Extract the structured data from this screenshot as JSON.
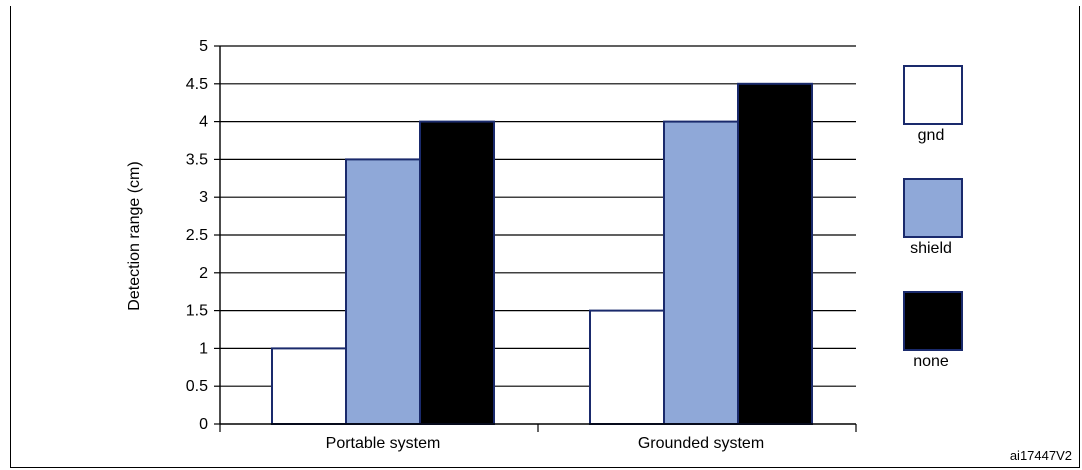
{
  "chart_data": {
    "type": "bar",
    "title": "",
    "xlabel": "",
    "ylabel": "Detection range (cm)",
    "ylim": [
      0,
      5
    ],
    "yticks": [
      "0",
      "0.5",
      "1",
      "1.5",
      "2",
      "2.5",
      "3",
      "3.5",
      "4",
      "4.5",
      "5"
    ],
    "categories": [
      "Portable system",
      "Grounded system"
    ],
    "series": [
      {
        "name": "gnd",
        "values": [
          1,
          1.5
        ],
        "color": "#ffffff"
      },
      {
        "name": "shield",
        "values": [
          3.5,
          4
        ],
        "color": "#8fa8d8"
      },
      {
        "name": "none",
        "values": [
          4,
          4.5
        ],
        "color": "#000000"
      }
    ],
    "grid": true,
    "legend_position": "right",
    "bar_outline_color": "#1a2a6c"
  },
  "figure_id": "ai17447V2"
}
